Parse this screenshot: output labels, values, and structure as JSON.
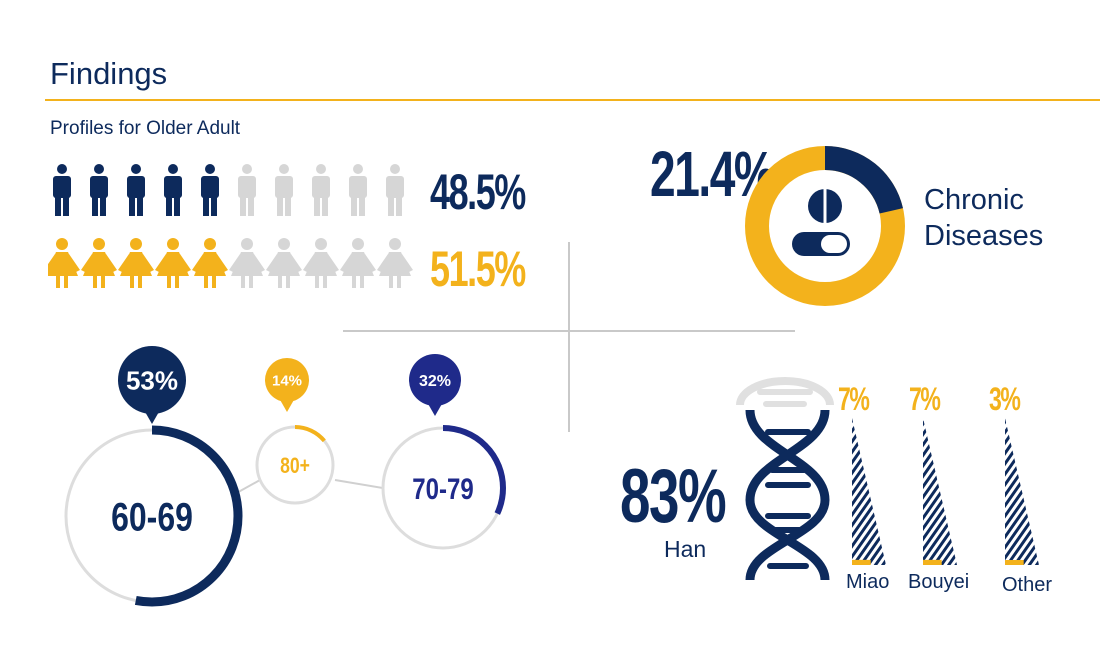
{
  "title": "Findings",
  "subtitle": "Profiles for Older Adult",
  "gender": {
    "male": {
      "percent": "48.5%",
      "total_icons": 10,
      "filled_icons": 5,
      "partial_fill": 0.25
    },
    "female": {
      "percent": "51.5%",
      "total_icons": 10,
      "filled_icons": 5
    }
  },
  "chronic": {
    "percent": "21.4%",
    "fraction": 0.214,
    "label_line1": "Chronic",
    "label_line2": "Diseases"
  },
  "age_groups": [
    {
      "label": "60-69",
      "percent": "53%",
      "fraction": 0.53,
      "color": "#0d2a5c"
    },
    {
      "label": "80+",
      "percent": "14%",
      "fraction": 0.14,
      "color": "#f3b21c"
    },
    {
      "label": "70-79",
      "percent": "32%",
      "fraction": 0.32,
      "color": "#1f2a8a"
    }
  ],
  "ethnicity": {
    "han": {
      "percent": "83%",
      "label": "Han"
    },
    "others": [
      {
        "label": "Miao",
        "percent": "7%",
        "fraction": 0.07
      },
      {
        "label": "Bouyei",
        "percent": "7%",
        "fraction": 0.07
      },
      {
        "label": "Other",
        "percent": "3%",
        "fraction": 0.03
      }
    ]
  },
  "colors": {
    "navy": "#0d2a5c",
    "gold": "#f3b21c",
    "royal": "#1f2a8a",
    "grey": "#cfcfcf"
  }
}
